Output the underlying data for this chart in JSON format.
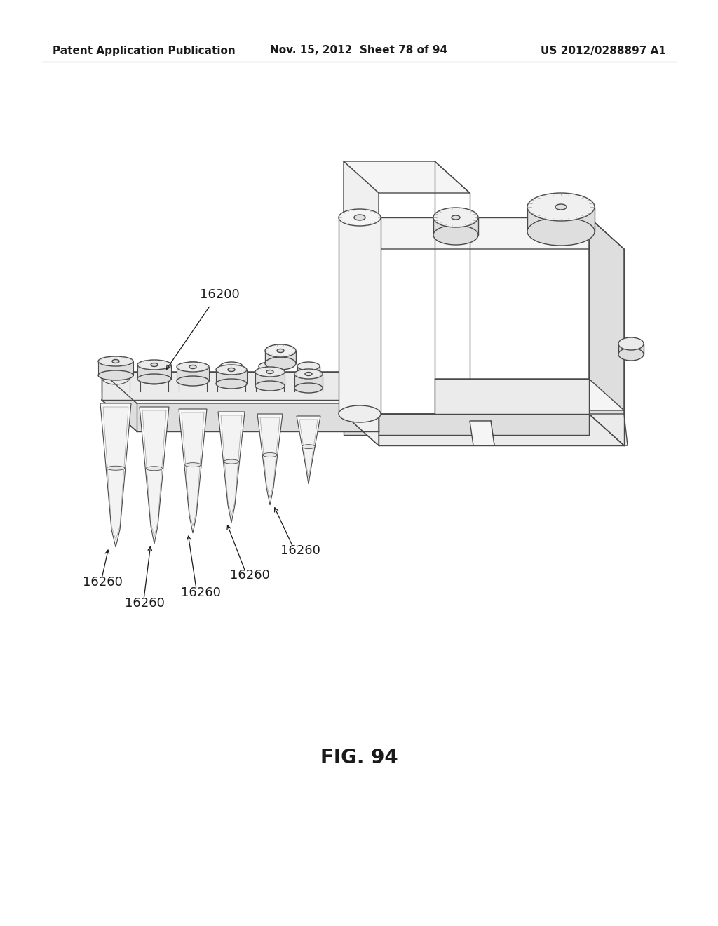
{
  "background_color": "#ffffff",
  "header_left": "Patent Application Publication",
  "header_center": "Nov. 15, 2012  Sheet 78 of 94",
  "header_right": "US 2012/0288897 A1",
  "header_fontsize": 11,
  "figure_caption": "FIG. 94",
  "caption_fontsize": 20,
  "line_color": "#4a4a4a",
  "fill_light": "#f5f5f5",
  "fill_mid": "#ebebeb",
  "fill_dark": "#dedede"
}
